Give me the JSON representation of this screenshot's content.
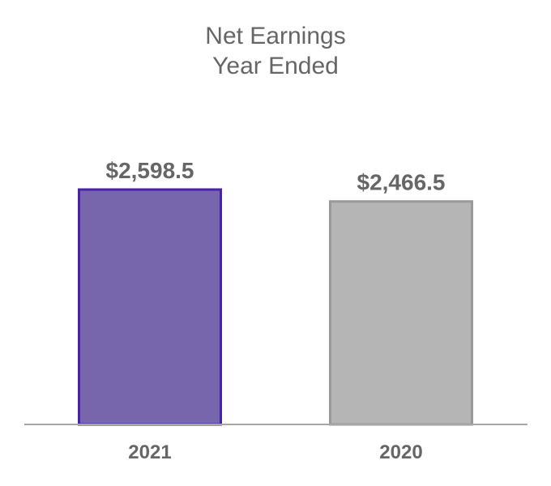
{
  "chart_data": {
    "type": "bar",
    "title": [
      "Net Earnings",
      "Year Ended"
    ],
    "categories": [
      "2021",
      "2020"
    ],
    "values": [
      2598.5,
      2466.5
    ],
    "value_labels": [
      "$2,598.5",
      "$2,466.5"
    ],
    "xlabel": "",
    "ylabel": "",
    "grid": false,
    "legend": "none",
    "colors": [
      {
        "fill": "#7866AD",
        "stroke": "#4A22A8"
      },
      {
        "fill": "#B5B5B5",
        "stroke": "#999999"
      }
    ],
    "axis_color": "#A6A6A6",
    "text_color": "#666666"
  }
}
